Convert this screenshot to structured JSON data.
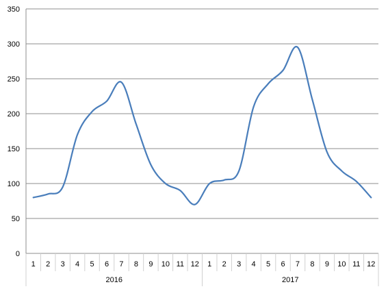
{
  "chart_data": {
    "type": "line",
    "title": "",
    "xlabel": "",
    "ylabel": "",
    "ylim": [
      0,
      350
    ],
    "yticks": [
      0,
      50,
      100,
      150,
      200,
      250,
      300,
      350
    ],
    "grid": "horizontal",
    "categories": [
      "1",
      "2",
      "3",
      "4",
      "5",
      "6",
      "7",
      "8",
      "9",
      "10",
      "11",
      "12",
      "1",
      "2",
      "3",
      "4",
      "5",
      "6",
      "7",
      "8",
      "9",
      "10",
      "11",
      "12"
    ],
    "groups": [
      {
        "label": "2016",
        "count": 12
      },
      {
        "label": "2017",
        "count": 12
      }
    ],
    "series": [
      {
        "values": [
          80,
          85,
          95,
          170,
          203,
          218,
          245,
          185,
          127,
          100,
          90,
          70,
          100,
          105,
          118,
          210,
          243,
          262,
          295,
          220,
          145,
          118,
          103,
          80
        ],
        "color": "#4a7ebb"
      }
    ]
  }
}
